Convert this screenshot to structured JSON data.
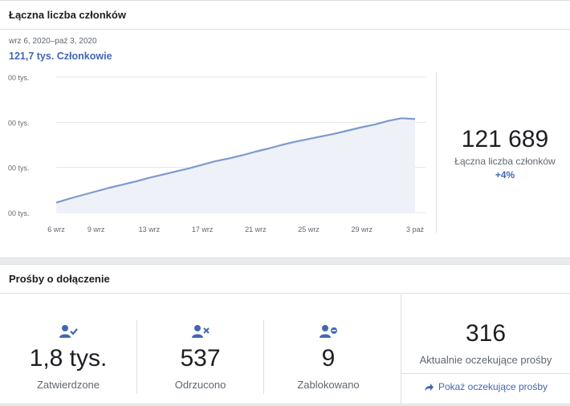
{
  "members_card": {
    "title": "Łączna liczba członków",
    "date_range": "wrz 6, 2020–paź 3, 2020",
    "metric": "121,7 tys. Członkowie",
    "total_value": "121 689",
    "total_label": "Łączna liczba członków",
    "total_change": "+4%"
  },
  "chart_data": {
    "type": "area",
    "x": [
      "6 wrz",
      "7 wrz",
      "8 wrz",
      "9 wrz",
      "10 wrz",
      "11 wrz",
      "12 wrz",
      "13 wrz",
      "14 wrz",
      "15 wrz",
      "16 wrz",
      "17 wrz",
      "18 wrz",
      "19 wrz",
      "20 wrz",
      "21 wrz",
      "22 wrz",
      "23 wrz",
      "24 wrz",
      "25 wrz",
      "26 wrz",
      "27 wrz",
      "28 wrz",
      "29 wrz",
      "30 wrz",
      "1 paź",
      "2 paź",
      "3 paź"
    ],
    "values": [
      0.22,
      0.31,
      0.39,
      0.47,
      0.55,
      0.62,
      0.69,
      0.77,
      0.84,
      0.91,
      0.98,
      1.06,
      1.14,
      1.2,
      1.27,
      1.35,
      1.42,
      1.5,
      1.57,
      1.63,
      1.69,
      1.75,
      1.82,
      1.89,
      1.95,
      2.03,
      2.09,
      2.07
    ],
    "x_tick_labels": [
      "6 wrz",
      "9 wrz",
      "13 wrz",
      "17 wrz",
      "21 wrz",
      "25 wrz",
      "29 wrz",
      "3 paź"
    ],
    "y_tick_labels": [
      "00 tys.",
      "00 tys.",
      "00 tys.",
      "00 tys."
    ],
    "ylim": [
      0,
      3
    ],
    "grid": true,
    "colors": {
      "line": "#7c9acc",
      "fill": "#eef1f8",
      "grid": "#e4e6ea"
    }
  },
  "requests_card": {
    "title": "Prośby o dołączenie",
    "stats": [
      {
        "icon": "user-check-icon",
        "value": "1,8 tys.",
        "label": "Zatwierdzone"
      },
      {
        "icon": "user-x-icon",
        "value": "537",
        "label": "Odrzucono"
      },
      {
        "icon": "user-blocked-icon",
        "value": "9",
        "label": "Zablokowano"
      }
    ],
    "pending": {
      "value": "316",
      "label": "Aktualnie oczekujące prośby",
      "link": "Pokaż oczekujące prośby"
    }
  },
  "colors": {
    "accent": "#4267b2",
    "icon": "#4267b2"
  }
}
